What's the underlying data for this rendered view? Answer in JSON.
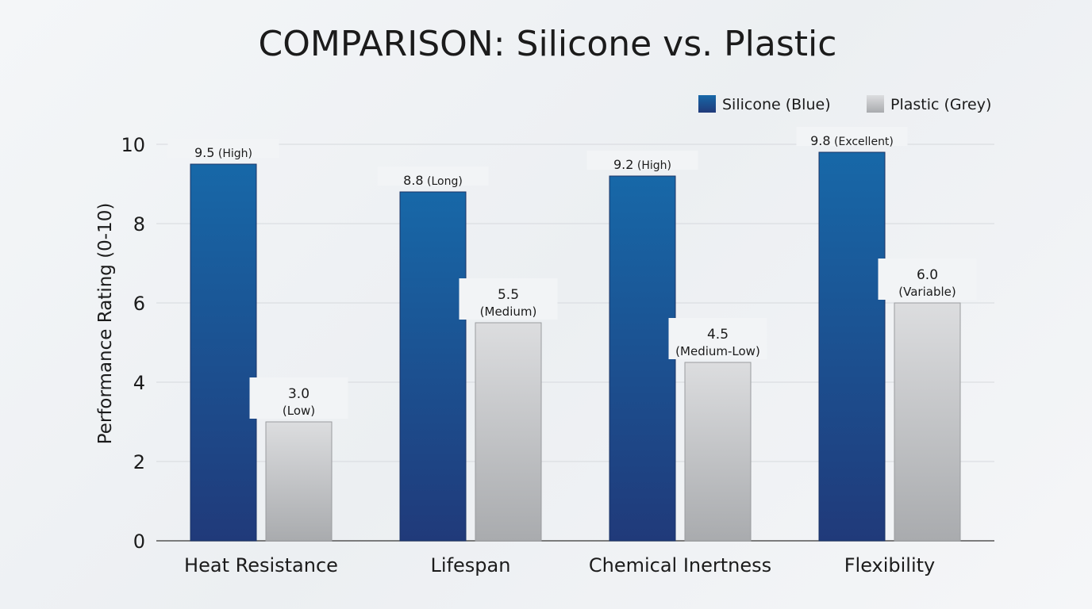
{
  "chart_data": {
    "type": "bar",
    "title": "COMPARISON: Silicone vs. Plastic",
    "ylabel": "Performance Rating (0-10)",
    "xlabel": "",
    "ylim": [
      0,
      10
    ],
    "yticks": [
      "0",
      "2",
      "4",
      "6",
      "8",
      "10"
    ],
    "grid": true,
    "legend_placement": "top-right",
    "categories": [
      "Heat Resistance",
      "Lifespan",
      "Chemical Inertness",
      "Flexibility"
    ],
    "series": [
      {
        "name": "Silicone (Blue)",
        "color": "#1a64a3",
        "values": [
          9.5,
          8.8,
          9.2,
          9.8
        ],
        "value_labels": [
          "9.5",
          "8.8",
          "9.2",
          "9.8"
        ],
        "descriptors": [
          "(High)",
          "(Long)",
          "(High)",
          "(Excellent)"
        ]
      },
      {
        "name": "Plastic (Grey)",
        "color": "#c4c6c9",
        "values": [
          3.0,
          5.5,
          4.5,
          6.0
        ],
        "value_labels": [
          "3.0",
          "5.5",
          "4.5",
          "6.0"
        ],
        "descriptors": [
          "(Low)",
          "(Medium)",
          "(Medium-Low)",
          "(Variable)"
        ]
      }
    ]
  }
}
